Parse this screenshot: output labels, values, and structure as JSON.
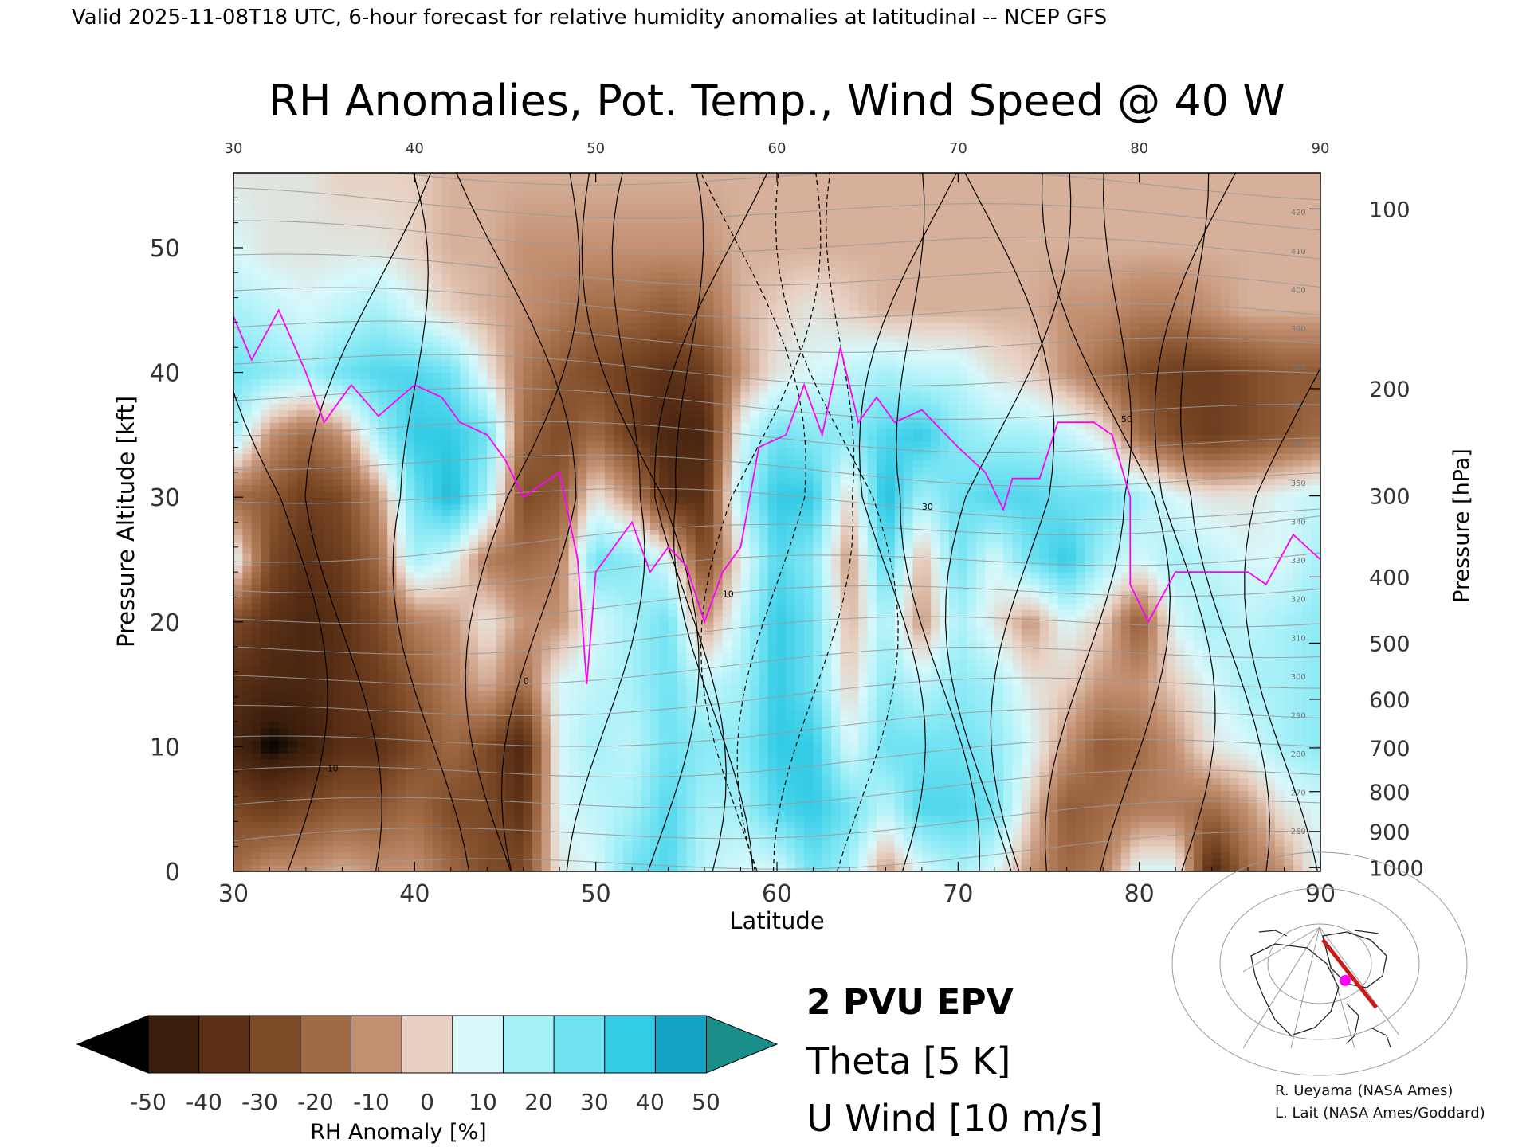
{
  "header": {
    "valid_line": "Valid 2025-11-08T18 UTC, 6-hour forecast for relative humidity anomalies at latitudinal -- NCEP GFS"
  },
  "chart_data": {
    "type": "heatmap",
    "title": "RH Anomalies, Pot. Temp., Wind Speed @ 40 W",
    "xlabel": "Latitude",
    "ylabel_left": "Pressure Altitude [kft]",
    "ylabel_right": "Pressure [hPa]",
    "x_range": [
      30,
      90
    ],
    "y_range": [
      0,
      56
    ],
    "x_ticks": [
      "30",
      "40",
      "50",
      "60",
      "70",
      "80",
      "90"
    ],
    "y_ticks_left": [
      "0",
      "10",
      "20",
      "30",
      "40",
      "50"
    ],
    "y_ticks_right": [
      {
        "label": "100",
        "kft": 53.1
      },
      {
        "label": "200",
        "kft": 38.7
      },
      {
        "label": "300",
        "kft": 30.1
      },
      {
        "label": "400",
        "kft": 23.6
      },
      {
        "label": "500",
        "kft": 18.3
      },
      {
        "label": "600",
        "kft": 13.8
      },
      {
        "label": "700",
        "kft": 9.9
      },
      {
        "label": "800",
        "kft": 6.4
      },
      {
        "label": "900",
        "kft": 3.2
      },
      {
        "label": "1000",
        "kft": 0.3
      }
    ],
    "rh_field": {
      "lats": [
        30,
        32,
        34,
        36,
        38,
        40,
        42,
        44,
        46,
        48,
        50,
        52,
        54,
        56,
        58,
        60,
        62,
        64,
        66,
        68,
        70,
        72,
        74,
        76,
        78,
        80,
        82,
        84,
        86,
        88,
        90
      ],
      "levels_kft": [
        0,
        5,
        10,
        15,
        20,
        25,
        30,
        35,
        40,
        45,
        50,
        56
      ],
      "values": [
        [
          -20,
          -10,
          -10,
          -5,
          -10,
          -10,
          -20,
          -30,
          -30,
          5,
          10,
          30,
          35,
          15,
          10,
          10,
          30,
          20,
          -10,
          10,
          20,
          10,
          -10,
          -20,
          -15,
          10,
          10,
          -45,
          -20,
          -10,
          10
        ],
        [
          -30,
          -35,
          -30,
          -25,
          -25,
          -20,
          -30,
          -30,
          -40,
          10,
          15,
          20,
          35,
          20,
          20,
          35,
          40,
          30,
          15,
          35,
          35,
          30,
          0,
          -25,
          -20,
          -15,
          -15,
          -20,
          -10,
          5,
          10
        ],
        [
          -45,
          -55,
          -50,
          -40,
          -40,
          -30,
          -20,
          -30,
          -45,
          10,
          20,
          15,
          30,
          25,
          25,
          40,
          40,
          10,
          30,
          30,
          30,
          25,
          10,
          -10,
          -25,
          -20,
          -10,
          5,
          10,
          20,
          25
        ],
        [
          -40,
          -45,
          -45,
          -40,
          -35,
          -25,
          -15,
          -5,
          -20,
          10,
          15,
          20,
          30,
          15,
          20,
          40,
          30,
          0,
          25,
          15,
          25,
          20,
          5,
          0,
          -10,
          -10,
          0,
          10,
          20,
          20,
          25
        ],
        [
          -30,
          -40,
          -45,
          -40,
          -30,
          -15,
          -10,
          5,
          -10,
          -10,
          10,
          20,
          30,
          -10,
          15,
          40,
          30,
          -5,
          20,
          -10,
          20,
          5,
          -10,
          10,
          0,
          -25,
          10,
          20,
          15,
          20,
          25
        ],
        [
          10,
          -30,
          -40,
          -35,
          -20,
          20,
          10,
          -15,
          -20,
          -15,
          30,
          25,
          10,
          -30,
          5,
          35,
          25,
          -10,
          35,
          -5,
          30,
          10,
          30,
          40,
          20,
          10,
          20,
          15,
          10,
          10,
          20
        ],
        [
          -20,
          -25,
          -35,
          -30,
          -10,
          30,
          45,
          20,
          -30,
          -25,
          5,
          -10,
          -40,
          -40,
          20,
          40,
          40,
          0,
          45,
          20,
          30,
          35,
          35,
          30,
          30,
          20,
          10,
          5,
          5,
          10,
          15
        ],
        [
          20,
          -10,
          -20,
          -10,
          20,
          40,
          40,
          30,
          -20,
          -30,
          -20,
          -35,
          -45,
          -45,
          10,
          30,
          25,
          25,
          35,
          40,
          25,
          20,
          20,
          15,
          5,
          -20,
          -30,
          -35,
          -30,
          -25,
          -20
        ],
        [
          30,
          25,
          20,
          30,
          35,
          35,
          30,
          5,
          -15,
          -25,
          -30,
          -35,
          -40,
          -35,
          -10,
          5,
          10,
          15,
          20,
          15,
          15,
          5,
          0,
          -10,
          -20,
          -30,
          -35,
          -35,
          -30,
          -25,
          -25
        ],
        [
          20,
          15,
          10,
          15,
          20,
          10,
          0,
          -5,
          -10,
          -15,
          -20,
          -20,
          -25,
          -20,
          -5,
          0,
          5,
          0,
          -5,
          -5,
          -5,
          -5,
          -5,
          -10,
          -10,
          -15,
          -15,
          -10,
          -5,
          -5,
          -5
        ],
        [
          10,
          5,
          5,
          5,
          5,
          0,
          -5,
          -5,
          -10,
          -10,
          -10,
          -10,
          -10,
          -10,
          -5,
          -5,
          -5,
          -5,
          -5,
          -5,
          -5,
          -5,
          -5,
          -5,
          -5,
          -5,
          -5,
          -5,
          -5,
          -5,
          -5
        ],
        [
          5,
          5,
          5,
          0,
          0,
          0,
          -5,
          -5,
          -5,
          -5,
          -5,
          -5,
          -5,
          -5,
          -5,
          -5,
          -5,
          -5,
          -5,
          -5,
          -5,
          -5,
          -5,
          -5,
          -5,
          -5,
          -5,
          -5,
          -5,
          -5,
          -5
        ]
      ]
    },
    "epv_2pvu": [
      [
        30,
        44.5
      ],
      [
        31,
        41
      ],
      [
        32.5,
        45
      ],
      [
        34,
        40
      ],
      [
        35,
        36
      ],
      [
        36.5,
        39
      ],
      [
        38,
        36.5
      ],
      [
        40,
        39
      ],
      [
        41.5,
        38
      ],
      [
        42.5,
        36
      ],
      [
        44,
        35
      ],
      [
        45,
        33
      ],
      [
        46,
        30
      ],
      [
        47,
        31
      ],
      [
        48,
        32
      ],
      [
        49,
        25
      ],
      [
        49.5,
        15
      ],
      [
        50,
        24
      ],
      [
        52,
        28
      ],
      [
        53,
        24
      ],
      [
        54,
        26
      ],
      [
        55,
        24.5
      ],
      [
        56,
        20
      ],
      [
        57,
        24
      ],
      [
        58,
        26
      ],
      [
        59,
        34
      ],
      [
        60.5,
        35
      ],
      [
        61.5,
        39
      ],
      [
        62.5,
        35
      ],
      [
        63.5,
        42
      ],
      [
        64.5,
        36
      ],
      [
        65.5,
        38
      ],
      [
        66.5,
        36
      ],
      [
        68,
        37
      ],
      [
        70,
        34
      ],
      [
        71.5,
        32
      ],
      [
        72.5,
        29
      ],
      [
        73,
        31.5
      ],
      [
        74.5,
        31.5
      ],
      [
        75.5,
        36
      ],
      [
        77.5,
        36
      ],
      [
        78.5,
        35
      ],
      [
        79.5,
        30
      ],
      [
        79.5,
        23
      ],
      [
        80.5,
        20
      ],
      [
        82,
        24
      ],
      [
        84,
        24
      ],
      [
        86,
        24
      ],
      [
        87,
        23
      ],
      [
        88.5,
        27
      ],
      [
        90,
        25
      ]
    ],
    "u_wind_contours": {
      "interval_ms": 10,
      "labels": [
        "-10",
        "0",
        "10",
        "30",
        "50"
      ]
    },
    "theta_contours": {
      "interval_k": 5,
      "labels": [
        "260",
        "270",
        "280",
        "290",
        "300",
        "310",
        "320",
        "330",
        "340",
        "350",
        "360",
        "370",
        "380",
        "390",
        "400",
        "410",
        "420"
      ]
    },
    "colorbar": {
      "label": "RH Anomaly [%]",
      "ticks": [
        "-50",
        "-40",
        "-30",
        "-20",
        "-10",
        "0",
        "10",
        "20",
        "30",
        "40",
        "50"
      ],
      "colors": [
        "#3a1d0c",
        "#5b3016",
        "#7d4a27",
        "#a06a45",
        "#c39072",
        "#e8d0c2",
        "#d8f8fb",
        "#a6f0f8",
        "#6fe2f2",
        "#33cbe6",
        "#12a3c4"
      ],
      "under_color": "#000000",
      "over_color": "#1a8f8a"
    },
    "legend": {
      "epv": {
        "label": "2 PVU EPV",
        "color": "#ff00ff"
      },
      "theta": {
        "label": "Theta [5 K]",
        "color": "#9a9a9a"
      },
      "uwind": {
        "label": "U Wind [10 m/s]",
        "color": "#000000"
      }
    }
  },
  "credits": {
    "line1": "R. Ueyama (NASA Ames)",
    "line2": "L. Lait (NASA Ames/Goddard)"
  },
  "inset_map": {
    "track_color": "#cc1a1a",
    "marker_color": "#ff00ff"
  }
}
